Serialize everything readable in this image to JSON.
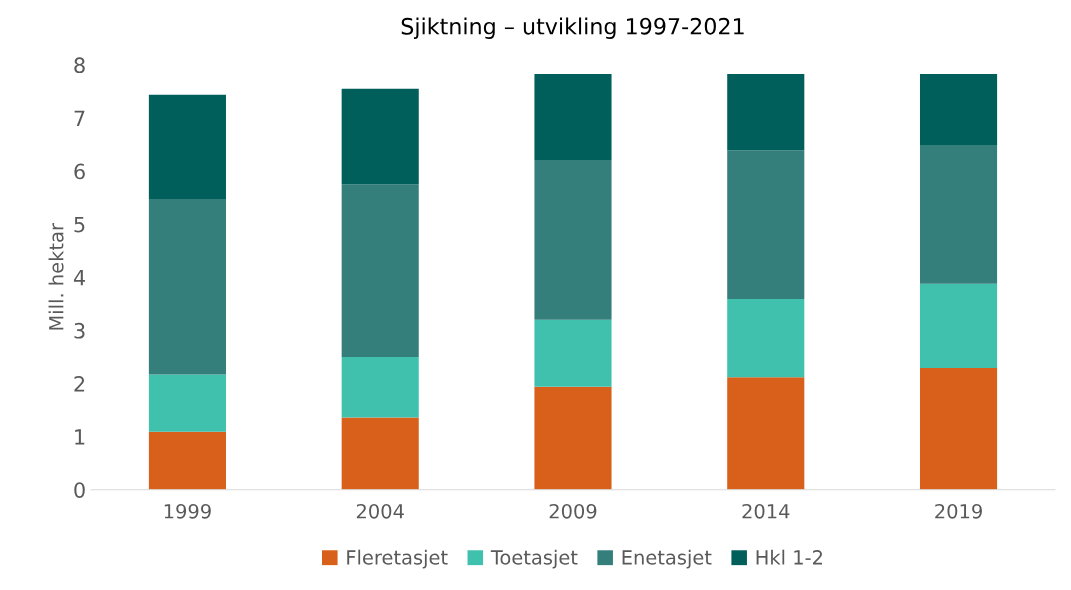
{
  "chart_data": {
    "type": "bar",
    "title": "Sjiktning – utvikling 1997-2021",
    "ylabel": "Mill. hektar",
    "categories": [
      "1999",
      "2004",
      "2009",
      "2014",
      "2019"
    ],
    "stacked": true,
    "series": [
      {
        "name": "Fleretasjet",
        "color": "#d9601a",
        "values": [
          1.09,
          1.36,
          1.94,
          2.12,
          2.29
        ]
      },
      {
        "name": "Toetasjet",
        "color": "#40c1ad",
        "values": [
          1.08,
          1.14,
          1.26,
          1.47,
          1.59
        ]
      },
      {
        "name": "Enetasjet",
        "color": "#347e7b",
        "values": [
          3.29,
          3.25,
          3.01,
          2.8,
          2.61
        ]
      },
      {
        "name": "Hkl 1-2",
        "color": "#005f5b",
        "values": [
          1.98,
          1.8,
          1.62,
          1.44,
          1.34
        ]
      }
    ],
    "ylim": [
      0,
      8
    ],
    "yticks": [
      0,
      1,
      2,
      3,
      4,
      5,
      6,
      7,
      8
    ],
    "grid": false,
    "legend": "bottom"
  }
}
